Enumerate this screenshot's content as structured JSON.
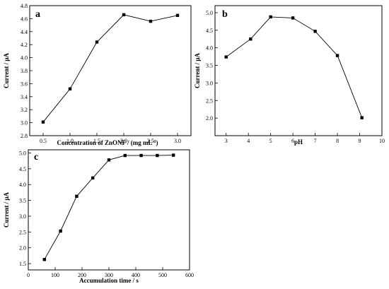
{
  "chart_data": [
    {
      "type": "line",
      "panel": "a",
      "xlabel": "Concentration of ZnONF / (mg mL",
      "xlabel_sup": "-1",
      "xlabel_close": ")",
      "ylabel": "Current / μA",
      "x": [
        0.5,
        1.0,
        1.5,
        2.0,
        2.5,
        3.0
      ],
      "y": [
        3.01,
        3.52,
        4.24,
        4.66,
        4.56,
        4.65
      ],
      "xlim": [
        0.25,
        3.25
      ],
      "ylim": [
        2.8,
        4.8
      ],
      "xticks": [
        "0.5",
        "1.0",
        "1.5",
        "2.0",
        "2.5",
        "3.0"
      ],
      "yticks": [
        "2.8",
        "3.0",
        "3.2",
        "3.4",
        "3.6",
        "3.8",
        "4.0",
        "4.2",
        "4.4",
        "4.6",
        "4.8"
      ],
      "marker": "square",
      "grid": false
    },
    {
      "type": "line",
      "panel": "b",
      "xlabel": "pH",
      "ylabel": "Current / μA",
      "x": [
        3,
        4.1,
        5,
        6,
        7,
        8,
        9.1
      ],
      "y": [
        3.74,
        4.25,
        4.88,
        4.85,
        4.47,
        3.78,
        2.01
      ],
      "xlim": [
        2.5,
        10
      ],
      "ylim": [
        1.5,
        5.2
      ],
      "xticks": [
        "3",
        "4",
        "5",
        "6",
        "7",
        "8",
        "9",
        "10"
      ],
      "yticks": [
        "2.0",
        "2.5",
        "3.0",
        "3.5",
        "4.0",
        "4.5",
        "5.0"
      ],
      "marker": "square",
      "grid": false
    },
    {
      "type": "line",
      "panel": "c",
      "xlabel": "Accumulation time / s",
      "ylabel": "Current / μA",
      "x": [
        60,
        120,
        180,
        240,
        300,
        360,
        420,
        480,
        540
      ],
      "y": [
        1.63,
        2.53,
        3.63,
        4.21,
        4.78,
        4.92,
        4.92,
        4.92,
        4.93
      ],
      "xlim": [
        0,
        600
      ],
      "ylim": [
        1.3,
        5.1
      ],
      "xticks": [
        "0",
        "100",
        "200",
        "300",
        "400",
        "500",
        "600"
      ],
      "yticks": [
        "1.5",
        "2.0",
        "2.5",
        "3.0",
        "3.5",
        "4.0",
        "4.5",
        "5.0"
      ],
      "marker": "square",
      "grid": false
    }
  ]
}
